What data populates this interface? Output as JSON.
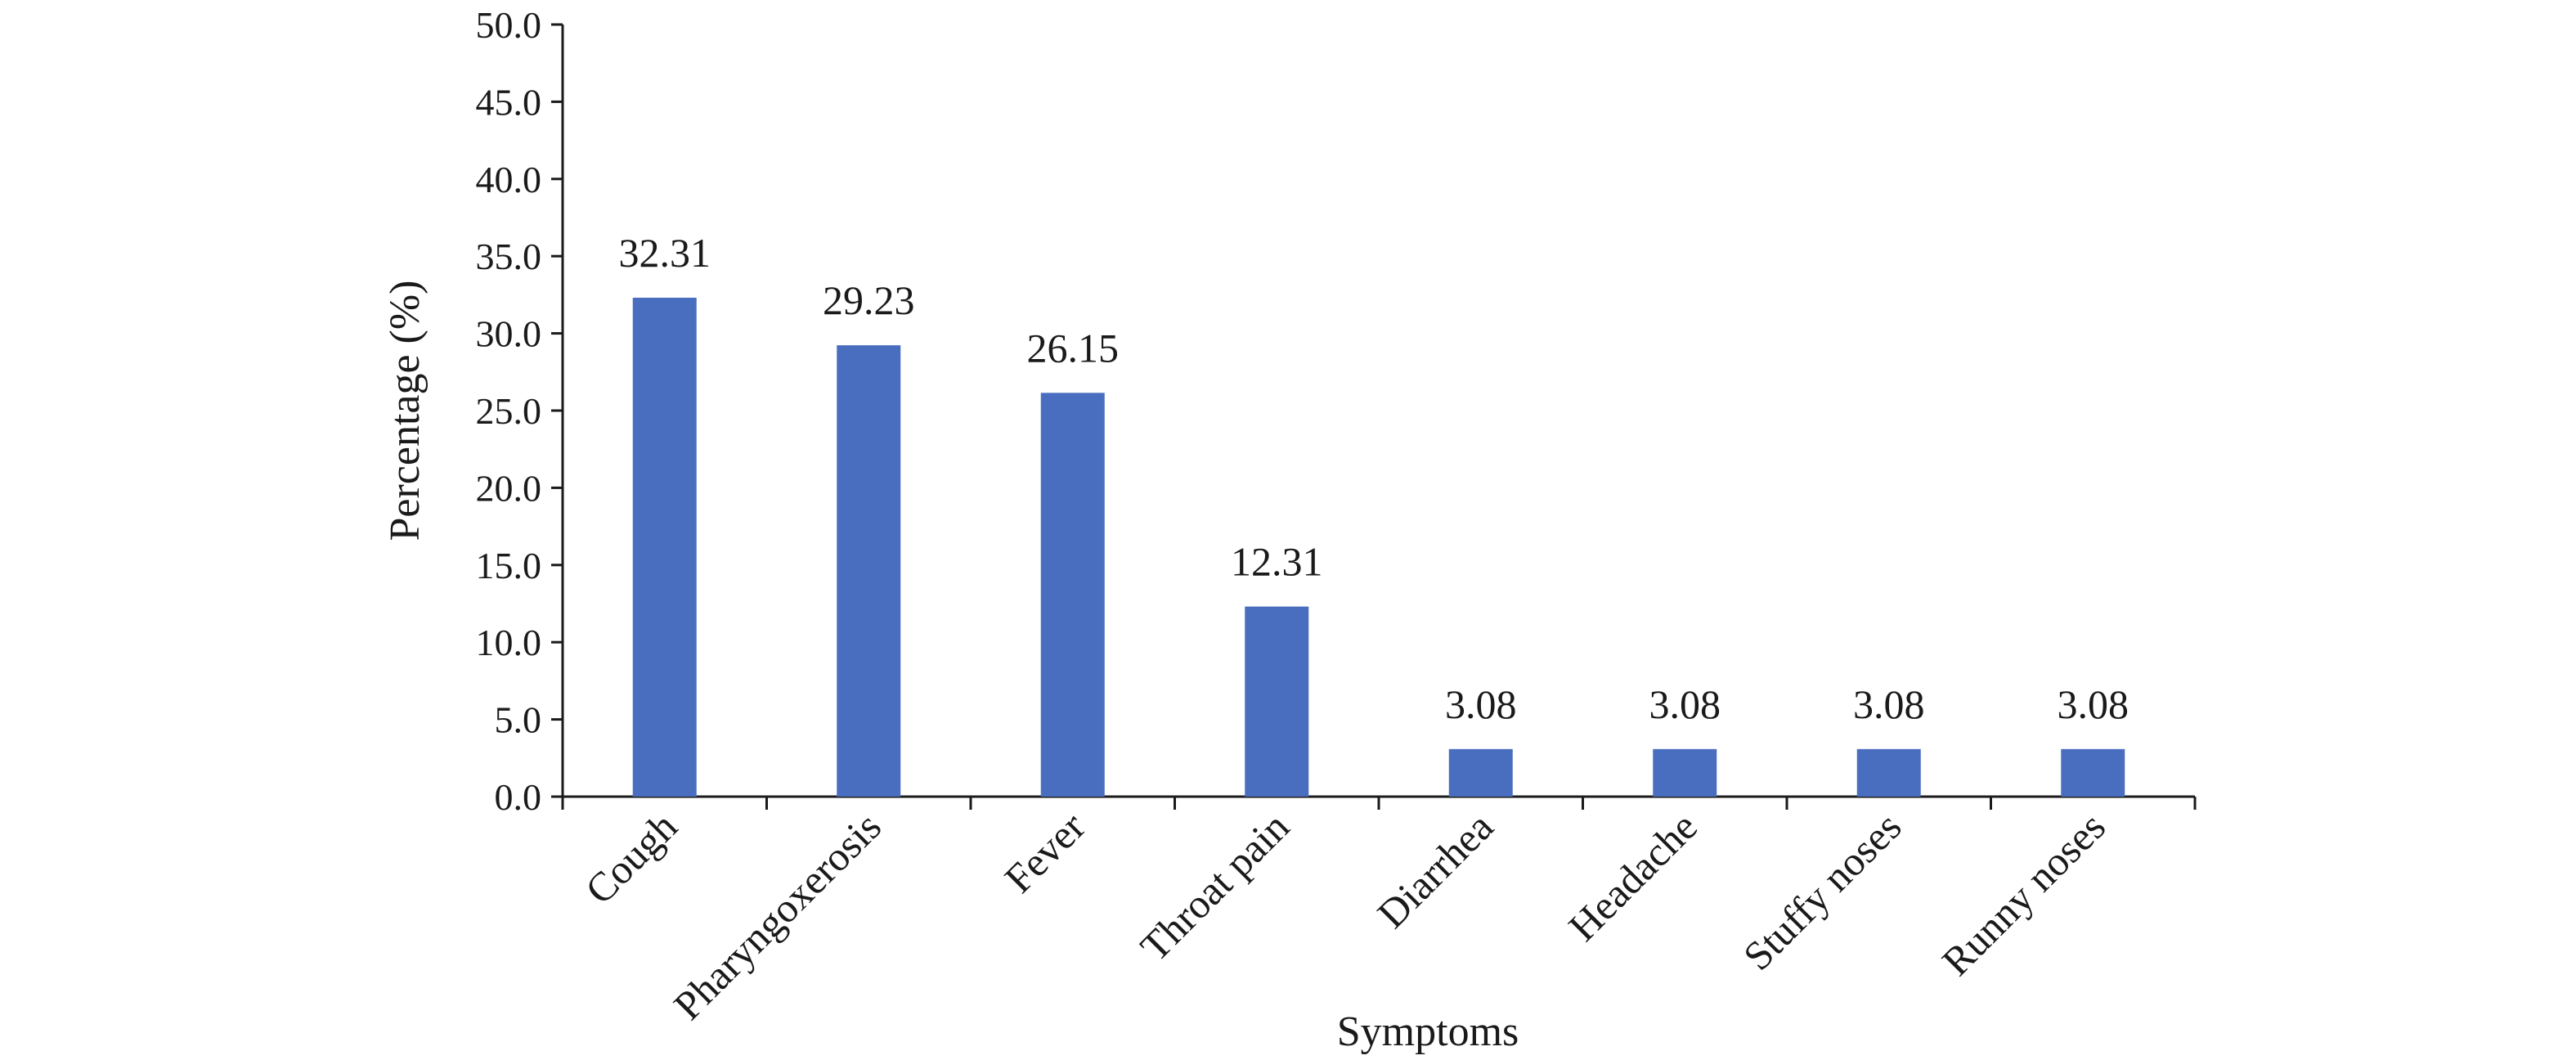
{
  "chart_data": {
    "type": "bar",
    "title": "",
    "xlabel": "Symptoms",
    "ylabel": "Percentage (%)",
    "ylim": [
      0,
      50
    ],
    "ytick_step": 5,
    "ytick_labels": [
      "0.0",
      "5.0",
      "10.0",
      "15.0",
      "20.0",
      "25.0",
      "30.0",
      "35.0",
      "40.0",
      "45.0",
      "50.0"
    ],
    "categories": [
      "Cough",
      "Pharyngoxerosis",
      "Fever",
      "Throat pain",
      "Diarrhea",
      "Headache",
      "Stuffy noses",
      "Runny noses"
    ],
    "values": [
      32.31,
      29.23,
      26.15,
      12.31,
      3.08,
      3.08,
      3.08,
      3.08
    ],
    "data_labels": [
      "32.31",
      "29.23",
      "26.15",
      "12.31",
      "3.08",
      "3.08",
      "3.08",
      "3.08"
    ],
    "bar_color": "#4A6EBF",
    "grid": false,
    "legend": "none"
  }
}
